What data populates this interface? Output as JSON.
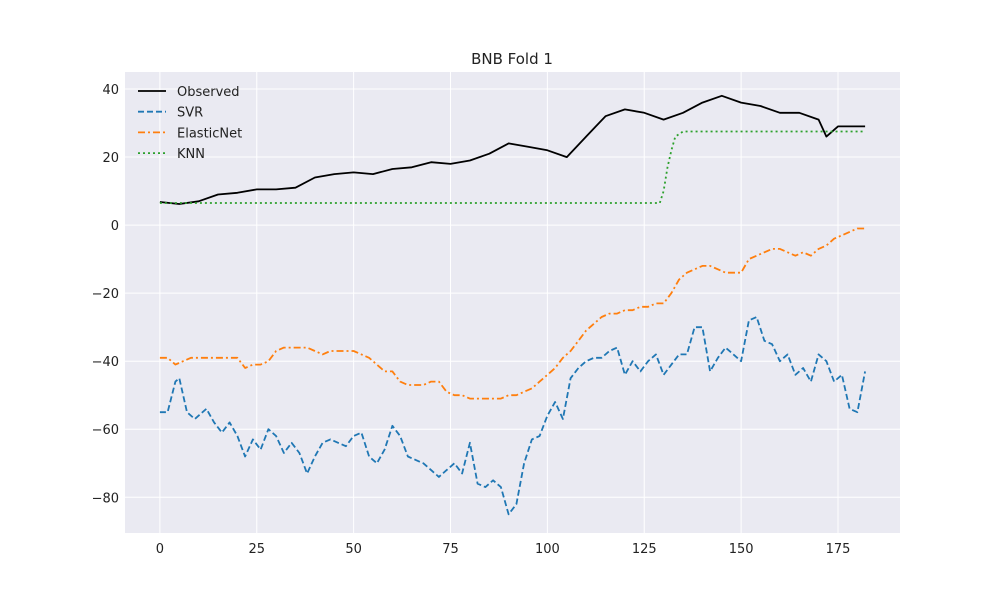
{
  "chart_data": {
    "type": "line",
    "title": "BNB Fold 1",
    "xlabel": "",
    "ylabel": "",
    "xlim": [
      -9,
      191
    ],
    "ylim": [
      -90.5,
      45
    ],
    "xticks": [
      0,
      25,
      50,
      75,
      100,
      125,
      150,
      175
    ],
    "yticks": [
      -80,
      -60,
      -40,
      -20,
      0,
      20,
      40
    ],
    "grid": true,
    "legend_position": "top-left",
    "style": {
      "plot_bg": "#eaeaf2",
      "grid_color": "#ffffff"
    },
    "series": [
      {
        "name": "Observed",
        "color": "#000000",
        "dash": "solid",
        "x": [
          0,
          5,
          10,
          15,
          20,
          25,
          30,
          35,
          40,
          45,
          50,
          55,
          60,
          65,
          70,
          75,
          80,
          85,
          90,
          95,
          100,
          105,
          110,
          115,
          120,
          125,
          130,
          135,
          140,
          145,
          150,
          155,
          160,
          165,
          170,
          172,
          175,
          180,
          182
        ],
        "y": [
          6.8,
          6.2,
          7,
          9,
          9.5,
          10.5,
          10.5,
          11,
          14,
          15,
          15.5,
          15,
          16.5,
          17,
          18.5,
          18,
          19,
          21,
          24,
          23,
          22,
          20,
          26,
          32,
          34,
          33,
          31,
          33,
          36,
          38,
          36,
          35,
          33,
          33,
          31,
          26,
          29,
          29,
          29
        ]
      },
      {
        "name": "SVR",
        "color": "#1f77b4",
        "dash": "dashed",
        "x": [
          0,
          2,
          4,
          5,
          7,
          9,
          12,
          14,
          16,
          18,
          20,
          22,
          24,
          26,
          28,
          30,
          32,
          34,
          36,
          38,
          40,
          42,
          44,
          46,
          48,
          50,
          52,
          54,
          56,
          58,
          60,
          62,
          64,
          66,
          68,
          70,
          72,
          74,
          76,
          78,
          80,
          82,
          84,
          86,
          88,
          90,
          92,
          94,
          96,
          98,
          100,
          102,
          104,
          106,
          108,
          110,
          112,
          114,
          116,
          118,
          120,
          122,
          124,
          126,
          128,
          130,
          132,
          134,
          136,
          138,
          140,
          142,
          144,
          146,
          148,
          150,
          152,
          154,
          156,
          158,
          160,
          162,
          164,
          166,
          168,
          170,
          172,
          174,
          176,
          178,
          180,
          182
        ],
        "y": [
          -55,
          -55,
          -46,
          -45,
          -55,
          -57,
          -54,
          -58,
          -61,
          -58,
          -62,
          -68,
          -63,
          -66,
          -60,
          -62,
          -67,
          -64,
          -67,
          -73,
          -68,
          -64,
          -63,
          -64,
          -65,
          -62,
          -61,
          -68,
          -70,
          -66,
          -59,
          -62,
          -68,
          -69,
          -70,
          -72,
          -74,
          -72,
          -70,
          -73,
          -64,
          -76,
          -77,
          -75,
          -77,
          -85,
          -82,
          -70,
          -63,
          -62,
          -56,
          -52,
          -57,
          -45,
          -42,
          -40,
          -39,
          -39,
          -37,
          -36,
          -44,
          -40,
          -43,
          -40,
          -38,
          -44,
          -41,
          -38,
          -38,
          -30,
          -30,
          -43,
          -39,
          -36,
          -38,
          -40,
          -28,
          -27,
          -34,
          -35,
          -40,
          -38,
          -44,
          -42,
          -46,
          -38,
          -40,
          -46,
          -44,
          -54,
          -55,
          -43
        ]
      },
      {
        "name": "ElasticNet",
        "color": "#ff7f0e",
        "dash": "dashdot",
        "x": [
          0,
          2,
          4,
          6,
          8,
          10,
          12,
          14,
          16,
          18,
          20,
          22,
          24,
          26,
          28,
          30,
          32,
          34,
          36,
          38,
          40,
          42,
          44,
          46,
          48,
          50,
          52,
          54,
          56,
          58,
          60,
          62,
          64,
          66,
          68,
          70,
          72,
          74,
          76,
          78,
          80,
          82,
          84,
          86,
          88,
          90,
          92,
          94,
          96,
          98,
          100,
          102,
          104,
          106,
          108,
          110,
          112,
          114,
          116,
          118,
          120,
          122,
          124,
          126,
          128,
          130,
          132,
          134,
          136,
          138,
          140,
          142,
          144,
          146,
          148,
          150,
          152,
          154,
          156,
          158,
          160,
          162,
          164,
          166,
          168,
          170,
          172,
          174,
          176,
          178,
          180,
          182
        ],
        "y": [
          -39,
          -39,
          -41,
          -40,
          -39,
          -39,
          -39,
          -39,
          -39,
          -39,
          -39,
          -42,
          -41,
          -41,
          -40,
          -37,
          -36,
          -36,
          -36,
          -36,
          -37,
          -38,
          -37,
          -37,
          -37,
          -37,
          -38,
          -39,
          -41,
          -43,
          -43,
          -46,
          -47,
          -47,
          -47,
          -46,
          -46,
          -49,
          -50,
          -50,
          -51,
          -51,
          -51,
          -51,
          -51,
          -50,
          -50,
          -49,
          -48,
          -46,
          -44,
          -42,
          -39,
          -37,
          -34,
          -31,
          -29,
          -27,
          -26,
          -26,
          -25,
          -25,
          -24,
          -24,
          -23,
          -23,
          -20,
          -16,
          -14,
          -13,
          -12,
          -12,
          -13,
          -14,
          -14,
          -14,
          -10,
          -9,
          -8,
          -7,
          -7,
          -8,
          -9,
          -8,
          -9,
          -7,
          -6,
          -4,
          -3,
          -2,
          -1,
          -1
        ]
      },
      {
        "name": "KNN",
        "color": "#2ca02c",
        "dash": "dotted",
        "x": [
          0,
          5,
          10,
          20,
          30,
          40,
          50,
          60,
          70,
          80,
          90,
          100,
          110,
          120,
          125,
          129,
          130,
          131,
          132,
          133,
          135,
          140,
          150,
          160,
          170,
          175,
          180,
          182
        ],
        "y": [
          6.5,
          6.5,
          6.5,
          6.5,
          6.5,
          6.5,
          6.5,
          6.5,
          6.5,
          6.5,
          6.5,
          6.5,
          6.5,
          6.5,
          6.5,
          6.5,
          10,
          17,
          22,
          26,
          27.5,
          27.5,
          27.5,
          27.5,
          27.5,
          27.5,
          27.5,
          27.5
        ]
      }
    ]
  }
}
